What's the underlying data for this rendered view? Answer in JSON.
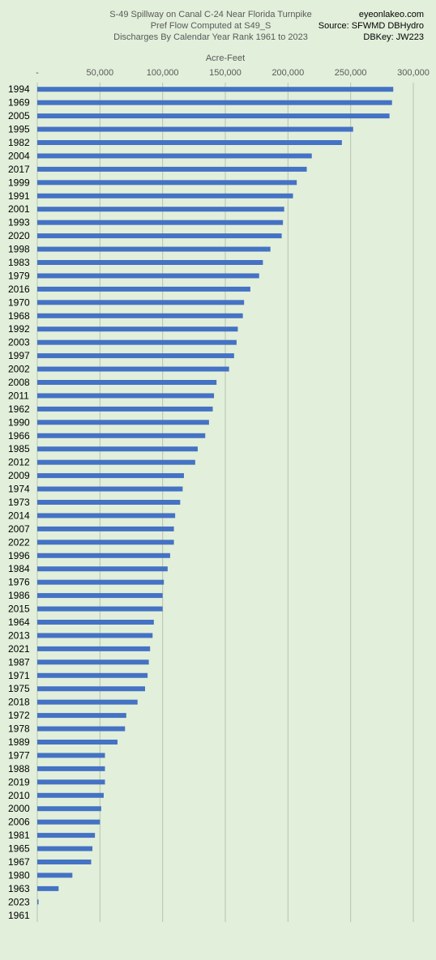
{
  "chart_data": {
    "type": "bar",
    "orientation": "horizontal",
    "title": [
      "S-49 Spillway on Canal C-24 Near Florida Turnpike",
      "Pref Flow Computed at S49_S",
      "Discharges By Calendar Year Rank 1961 to 2023"
    ],
    "source": [
      "eyeonlakeo.com",
      "Source: SFWMD DBHydro",
      "DBKey: JW223"
    ],
    "xlabel": "Acre-Feet",
    "ylabel": "",
    "xlim": [
      0,
      300000
    ],
    "x_ticks": [
      0,
      50000,
      100000,
      150000,
      200000,
      250000,
      300000
    ],
    "x_tick_labels": [
      "-",
      "50,000",
      "100,000",
      "150,000",
      "200,000",
      "250,000",
      "300,000"
    ],
    "axis_position": "top",
    "grid": true,
    "bar_color": "#4472c4",
    "background_color": "#e2efda",
    "categories": [
      "1994",
      "1969",
      "2005",
      "1995",
      "1982",
      "2004",
      "2017",
      "1999",
      "1991",
      "2001",
      "1993",
      "2020",
      "1998",
      "1983",
      "1979",
      "2016",
      "1970",
      "1968",
      "1992",
      "2003",
      "1997",
      "2002",
      "2008",
      "2011",
      "1962",
      "1990",
      "1966",
      "1985",
      "2012",
      "2009",
      "1974",
      "1973",
      "2014",
      "2007",
      "2022",
      "1996",
      "1984",
      "1976",
      "1986",
      "2015",
      "1964",
      "2013",
      "2021",
      "1987",
      "1971",
      "1975",
      "2018",
      "1972",
      "1978",
      "1989",
      "1977",
      "1988",
      "2019",
      "2010",
      "2000",
      "2006",
      "1981",
      "1965",
      "1967",
      "1980",
      "1963",
      "2023",
      "1961"
    ],
    "values": [
      284000,
      283000,
      281000,
      252000,
      243000,
      219000,
      215000,
      207000,
      204000,
      197000,
      196000,
      195000,
      186000,
      180000,
      177000,
      170000,
      165000,
      164000,
      160000,
      159000,
      157000,
      153000,
      143000,
      141000,
      140000,
      137000,
      134000,
      128000,
      126000,
      117000,
      116000,
      114000,
      110000,
      109000,
      109000,
      106000,
      104000,
      101000,
      100000,
      100000,
      93000,
      92000,
      90000,
      89000,
      88000,
      86000,
      80000,
      71000,
      70000,
      64000,
      54000,
      54000,
      54000,
      53000,
      51000,
      50000,
      46000,
      44000,
      43000,
      28000,
      17000,
      1000,
      0
    ]
  }
}
